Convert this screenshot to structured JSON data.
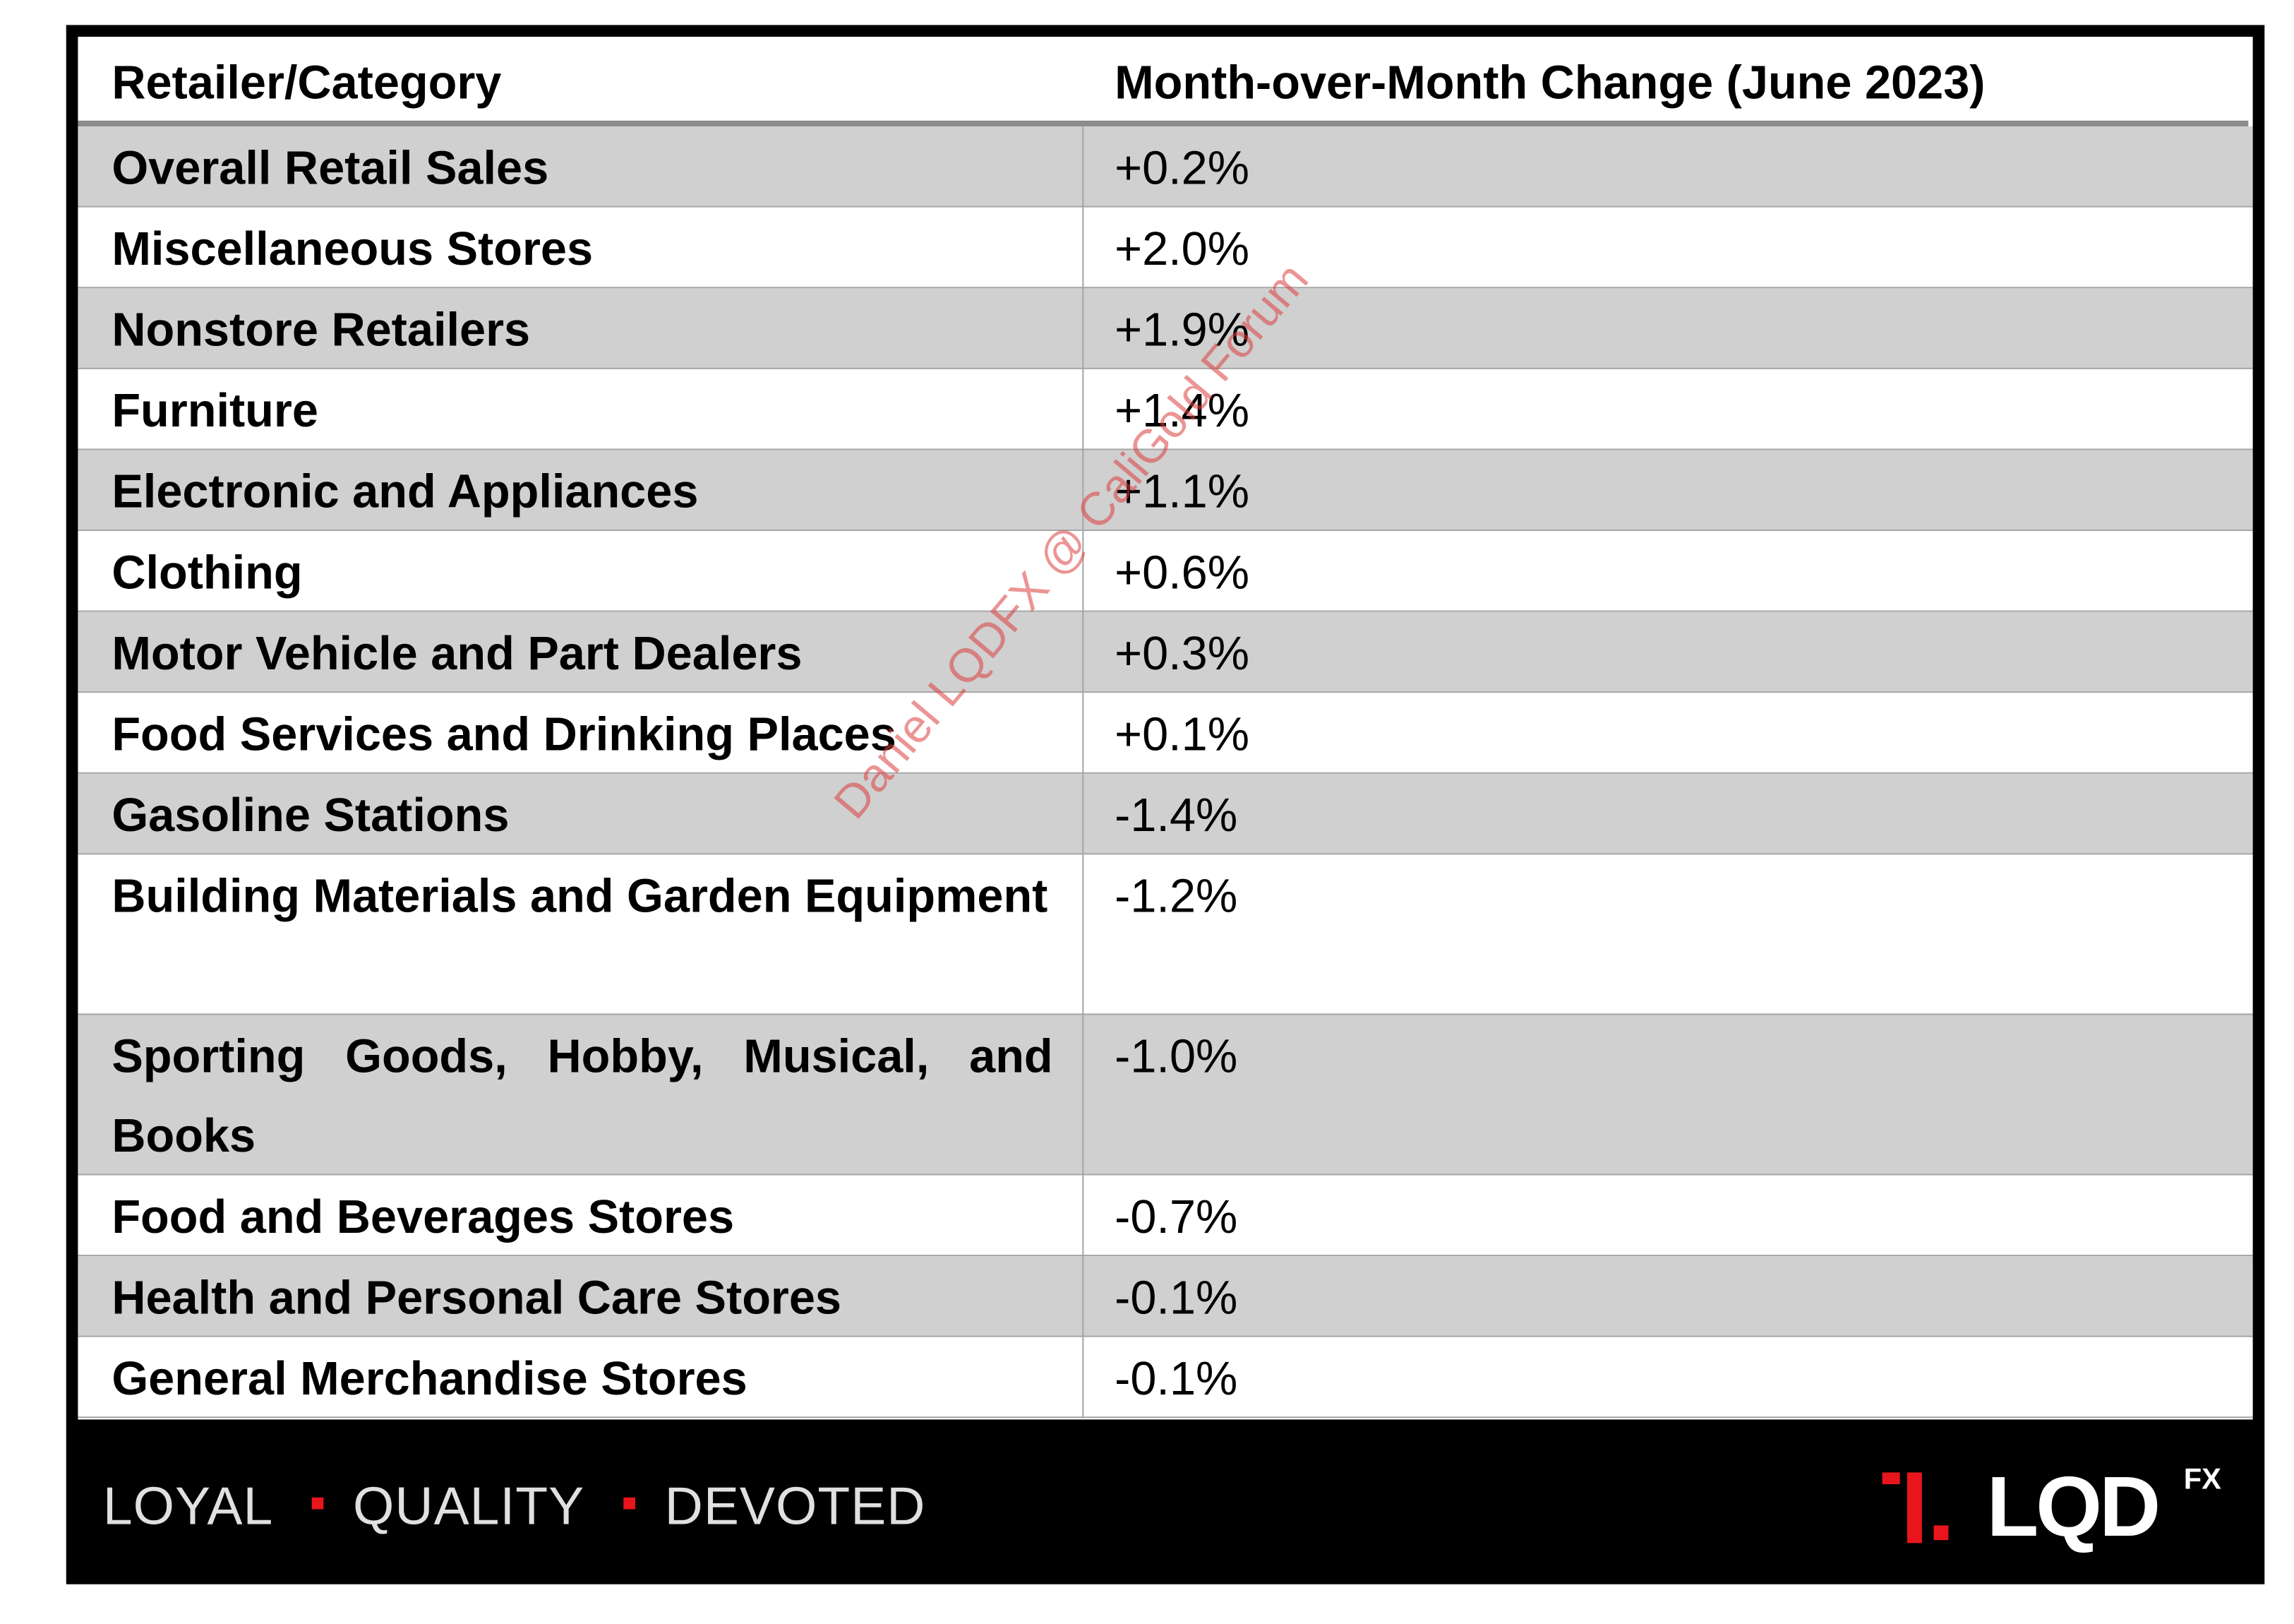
{
  "table": {
    "headers": [
      "Retailer/Category",
      "Month-over-Month Change (June 2023)"
    ],
    "rows": [
      [
        "Overall Retail Sales",
        "+0.2%"
      ],
      [
        "Miscellaneous Stores",
        "+2.0%"
      ],
      [
        "Nonstore Retailers",
        "+1.9%"
      ],
      [
        "Furniture",
        "+1.4%"
      ],
      [
        "Electronic and Appliances",
        "+1.1%"
      ],
      [
        "Clothing",
        "+0.6%"
      ],
      [
        "Motor Vehicle and Part Dealers",
        "+0.3%"
      ],
      [
        "Food Services and Drinking Places",
        "+0.1%"
      ],
      [
        "Gasoline Stations",
        "-1.4%"
      ],
      [
        "Building Materials and Garden Equipment",
        "-1.2%"
      ],
      [
        "Sporting Goods, Hobby, Musical, and Books",
        "-1.0%"
      ],
      [
        "Food and Beverages Stores",
        "-0.7%"
      ],
      [
        "Health and Personal Care Stores",
        "-0.1%"
      ],
      [
        "General Merchandise Stores",
        "-0.1%"
      ]
    ]
  },
  "watermark": "Daniel LQDFX @ CaliGold Forum",
  "footer": {
    "tagline": [
      "LOYAL",
      "QUALITY",
      "DEVOTED"
    ],
    "logo": "LQD",
    "logo_sup": "FX"
  }
}
